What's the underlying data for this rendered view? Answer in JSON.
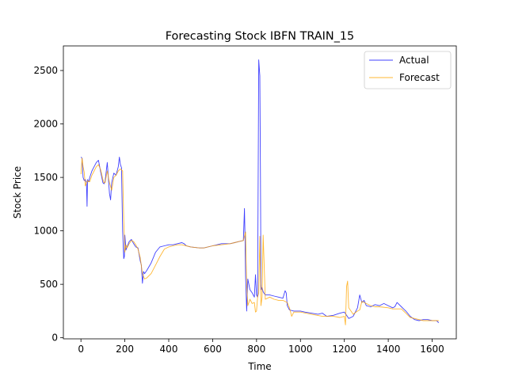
{
  "chart_data": {
    "type": "line",
    "title": "Forecasting Stock IBFN TRAIN_15",
    "xlabel": "Time",
    "ylabel": "Stock Price",
    "xlim": [
      -80,
      1710
    ],
    "ylim": [
      -10,
      2730
    ],
    "xticks": [
      0,
      200,
      400,
      600,
      800,
      1000,
      1200,
      1400,
      1600
    ],
    "yticks": [
      0,
      500,
      1000,
      1500,
      2000,
      2500
    ],
    "grid": false,
    "legend_position": "top-right",
    "series": [
      {
        "name": "Actual",
        "color": "#0000ff",
        "x": [
          0,
          5,
          10,
          15,
          20,
          25,
          28,
          30,
          35,
          40,
          50,
          60,
          70,
          80,
          90,
          100,
          105,
          110,
          120,
          130,
          135,
          140,
          150,
          160,
          170,
          175,
          180,
          185,
          190,
          195,
          198,
          200,
          205,
          210,
          220,
          230,
          240,
          250,
          260,
          270,
          275,
          280,
          285,
          290,
          300,
          320,
          340,
          360,
          380,
          400,
          420,
          440,
          460,
          470,
          480,
          500,
          540,
          560,
          600,
          640,
          680,
          700,
          720,
          740,
          745,
          748,
          750,
          755,
          760,
          770,
          780,
          790,
          795,
          800,
          805,
          810,
          815,
          818,
          820,
          822,
          825,
          830,
          840,
          860,
          880,
          900,
          920,
          930,
          935,
          940,
          945,
          950,
          970,
          1000,
          1020,
          1050,
          1080,
          1100,
          1120,
          1150,
          1180,
          1200,
          1210,
          1220,
          1240,
          1260,
          1270,
          1280,
          1290,
          1300,
          1320,
          1340,
          1360,
          1380,
          1400,
          1420,
          1430,
          1440,
          1460,
          1480,
          1500,
          1520,
          1540,
          1560,
          1580,
          1600,
          1620,
          1630
        ],
        "values": [
          1690,
          1680,
          1500,
          1470,
          1480,
          1450,
          1230,
          1480,
          1460,
          1500,
          1560,
          1600,
          1640,
          1660,
          1550,
          1450,
          1440,
          1460,
          1640,
          1350,
          1290,
          1450,
          1540,
          1520,
          1600,
          1690,
          1620,
          1590,
          1000,
          740,
          760,
          960,
          820,
          850,
          900,
          920,
          880,
          850,
          840,
          720,
          680,
          510,
          620,
          600,
          630,
          700,
          800,
          850,
          860,
          870,
          870,
          880,
          890,
          880,
          860,
          850,
          840,
          840,
          860,
          880,
          880,
          890,
          900,
          910,
          1210,
          900,
          580,
          250,
          550,
          450,
          420,
          380,
          590,
          400,
          380,
          2600,
          2450,
          1500,
          500,
          450,
          470,
          430,
          400,
          400,
          390,
          380,
          370,
          440,
          420,
          300,
          280,
          260,
          250,
          250,
          240,
          230,
          220,
          230,
          200,
          210,
          230,
          240,
          210,
          180,
          200,
          280,
          400,
          330,
          350,
          300,
          290,
          310,
          300,
          320,
          300,
          280,
          290,
          330,
          290,
          250,
          200,
          170,
          160,
          170,
          170,
          160,
          160,
          140
        ]
      },
      {
        "name": "Forecast",
        "color": "#ffa500",
        "x": [
          0,
          5,
          10,
          15,
          20,
          25,
          30,
          35,
          40,
          50,
          60,
          70,
          80,
          90,
          100,
          105,
          110,
          120,
          130,
          140,
          150,
          160,
          170,
          180,
          190,
          195,
          200,
          205,
          210,
          220,
          230,
          240,
          250,
          260,
          270,
          280,
          290,
          300,
          320,
          340,
          360,
          380,
          400,
          420,
          440,
          460,
          480,
          500,
          540,
          560,
          600,
          640,
          680,
          700,
          720,
          740,
          750,
          755,
          760,
          770,
          780,
          790,
          795,
          800,
          805,
          810,
          815,
          820,
          825,
          830,
          840,
          860,
          880,
          900,
          920,
          940,
          950,
          960,
          970,
          1000,
          1050,
          1100,
          1150,
          1180,
          1200,
          1205,
          1210,
          1215,
          1220,
          1240,
          1260,
          1270,
          1280,
          1300,
          1320,
          1340,
          1360,
          1400,
          1420,
          1440,
          1460,
          1480,
          1500,
          1520,
          1540,
          1560,
          1600,
          1620,
          1630
        ],
        "values": [
          1530,
          1680,
          1600,
          1550,
          1420,
          1450,
          1470,
          1460,
          1460,
          1520,
          1560,
          1600,
          1620,
          1570,
          1480,
          1450,
          1450,
          1560,
          1450,
          1380,
          1500,
          1520,
          1560,
          1580,
          1560,
          1100,
          800,
          870,
          840,
          880,
          910,
          900,
          870,
          830,
          750,
          600,
          550,
          560,
          600,
          680,
          760,
          830,
          850,
          860,
          870,
          870,
          860,
          850,
          840,
          840,
          860,
          870,
          880,
          890,
          900,
          910,
          990,
          500,
          300,
          360,
          320,
          330,
          240,
          250,
          380,
          420,
          950,
          300,
          380,
          960,
          360,
          380,
          360,
          350,
          350,
          330,
          280,
          200,
          240,
          240,
          220,
          200,
          200,
          190,
          200,
          120,
          480,
          530,
          280,
          220,
          250,
          260,
          340,
          320,
          300,
          290,
          290,
          280,
          270,
          270,
          270,
          230,
          190,
          180,
          170,
          160,
          160,
          160,
          160
        ]
      }
    ]
  }
}
